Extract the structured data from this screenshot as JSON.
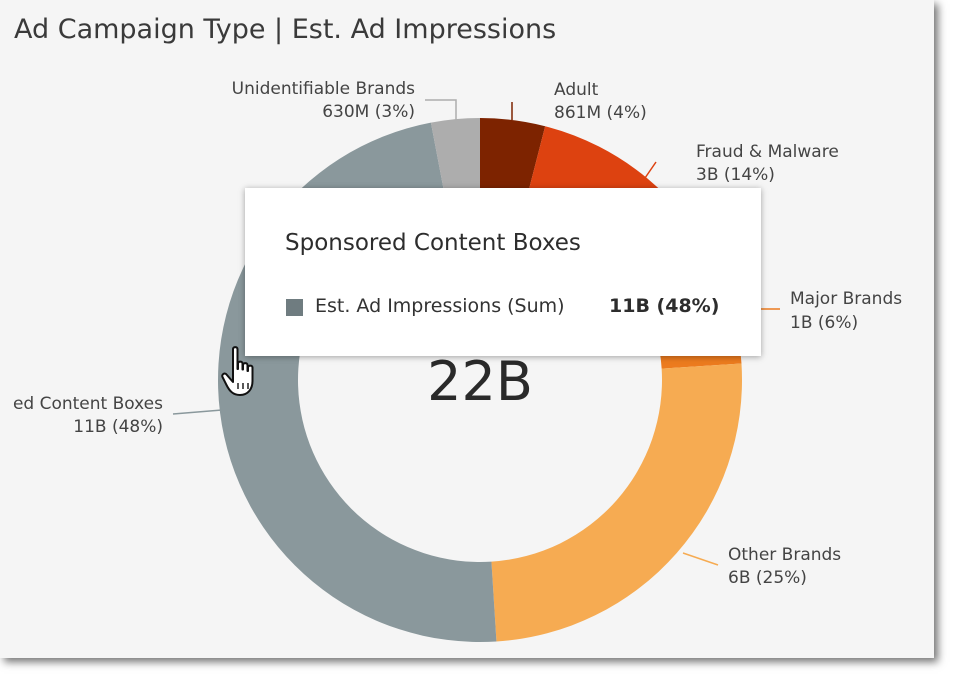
{
  "chart_data": {
    "type": "pie",
    "title": "Ad Campaign Type | Est. Ad Impressions",
    "center_label": "22B",
    "slices": [
      {
        "name": "Adult",
        "value_label": "861M (4%)",
        "percent": 4,
        "color": "#7d2300"
      },
      {
        "name": "Fraud & Malware",
        "value_label": "3B (14%)",
        "percent": 14,
        "color": "#dd4210"
      },
      {
        "name": "Major Brands",
        "value_label": "1B (6%)",
        "percent": 6,
        "color": "#ec7b1e"
      },
      {
        "name": "Other Brands",
        "value_label": "6B (25%)",
        "percent": 25,
        "color": "#f6ab52"
      },
      {
        "name": "Sponsored Content Boxes",
        "display_name": "ed Content Boxes",
        "value_label": "11B (48%)",
        "percent": 48,
        "color": "#8a989c"
      },
      {
        "name": "Unidentifiable Brands",
        "value_label": "630M (3%)",
        "percent": 3,
        "color": "#adadad"
      }
    ]
  },
  "tooltip": {
    "title": "Sponsored Content Boxes",
    "measure": "Est. Ad Impressions (Sum)",
    "value": "11B (48%)",
    "swatch_color": "#6f7c80"
  },
  "cursor": "hand-pointer-icon"
}
